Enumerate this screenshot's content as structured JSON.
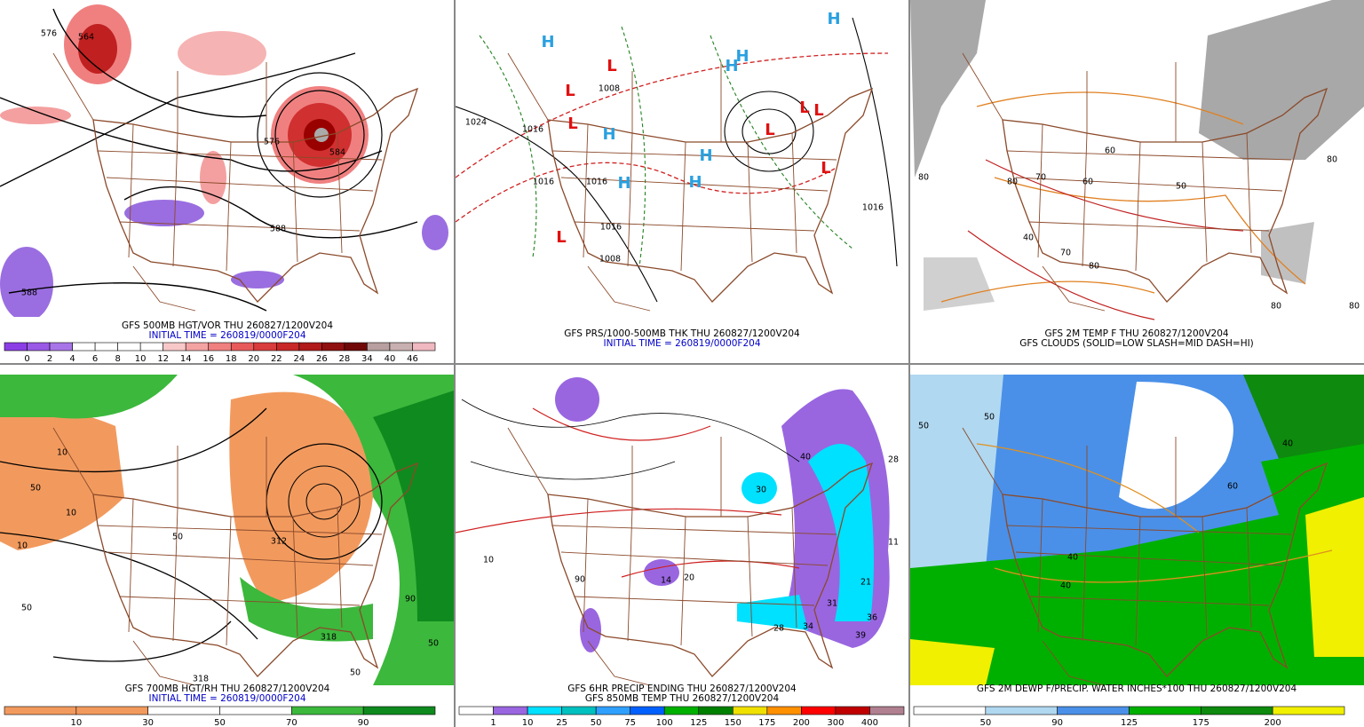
{
  "panels": [
    {
      "captions": [
        {
          "text": "GFS 500MB HGT/VOR THU 260827/1200V204",
          "color": "#000000"
        },
        {
          "text": "INITIAL TIME = 260819/0000F204",
          "color": "#0000c8"
        }
      ],
      "map_labels": [
        "576",
        "564",
        "576",
        "584",
        "588",
        "588"
      ],
      "colorbar": {
        "labels": [
          "0",
          "2",
          "4",
          "6",
          "8",
          "10",
          "12",
          "14",
          "16",
          "18",
          "20",
          "22",
          "24",
          "26",
          "28",
          "34",
          "40",
          "46"
        ],
        "colors": [
          "#8c3ee6",
          "#9959e6",
          "#a875e8",
          "#ffffff",
          "#ffffff",
          "#ffffff",
          "#ffffff",
          "#f8c8c8",
          "#f4a3a3",
          "#f08080",
          "#e85a5a",
          "#d93c3c",
          "#c82828",
          "#b01a1a",
          "#901010",
          "#700808",
          "#b8a0a0",
          "#c8b0b0",
          "#f0b8c0"
        ]
      }
    },
    {
      "captions": [
        {
          "text": "GFS PRS/1000-500MB THK THU 260827/1200V204",
          "color": "#000000"
        },
        {
          "text": "INITIAL TIME = 260819/0000F204",
          "color": "#0000c8"
        }
      ],
      "map_labels": [
        "1024",
        "1016",
        "1016",
        "1016",
        "1016",
        "1008",
        "1016",
        "1008"
      ],
      "high_labels": [
        "H",
        "H",
        "H",
        "H",
        "H",
        "H",
        "H",
        "H"
      ],
      "low_labels": [
        "L",
        "L",
        "L",
        "L",
        "L",
        "L",
        "L",
        "L"
      ]
    },
    {
      "captions": [
        {
          "text": "GFS 2M TEMP F THU 260827/1200V204",
          "color": "#000000"
        },
        {
          "text": "GFS CLOUDS (SOLID=LOW SLASH=MID DASH=HI)",
          "color": "#000000"
        }
      ],
      "map_labels": [
        "80",
        "70",
        "60",
        "50",
        "80",
        "80",
        "40",
        "70",
        "80",
        "60",
        "80",
        "80"
      ]
    },
    {
      "captions": [
        {
          "text": "GFS 700MB HGT/RH THU 260827/1200V204",
          "color": "#000000"
        },
        {
          "text": "INITIAL TIME = 260819/0000F204",
          "color": "#0000c8"
        }
      ],
      "map_labels": [
        "10",
        "50",
        "10",
        "50",
        "10",
        "50",
        "312",
        "318",
        "318",
        "90",
        "50",
        "50"
      ],
      "colorbar": {
        "labels": [
          "10",
          "30",
          "50",
          "70",
          "90"
        ],
        "colors": [
          "#f29a5e",
          "#f29a5e",
          "#ffffff",
          "#ffffff",
          "#3cb83c",
          "#0f8a1e"
        ]
      }
    },
    {
      "captions": [
        {
          "text": "GFS 6HR PRECIP ENDING THU 260827/1200V204",
          "color": "#000000"
        },
        {
          "text": "GFS 850MB TEMP THU 260827/1200V204",
          "color": "#000000"
        }
      ],
      "map_labels": [
        "40",
        "30",
        "28",
        "34",
        "39",
        "36",
        "21",
        "31",
        "11",
        "28",
        "14",
        "90",
        "20",
        "10"
      ],
      "colorbar": {
        "labels": [
          "1",
          "10",
          "25",
          "50",
          "75",
          "100",
          "125",
          "150",
          "175",
          "200",
          "300",
          "400"
        ],
        "colors": [
          "#ffffff",
          "#9966e0",
          "#00e0ff",
          "#00c0c0",
          "#30a0ff",
          "#0060ff",
          "#00b000",
          "#008000",
          "#f0e000",
          "#ff9000",
          "#ff0000",
          "#c00000",
          "#b08090"
        ]
      }
    },
    {
      "captions": [
        {
          "text": "GFS 2M DEWP F/PRECIP. WATER INCHES*100 THU 260827/1200V204",
          "color": "#000000"
        }
      ],
      "map_labels": [
        "50",
        "50",
        "40",
        "40",
        "60",
        "40"
      ],
      "colorbar": {
        "labels": [
          "50",
          "90",
          "125",
          "175",
          "200"
        ],
        "colors": [
          "#ffffff",
          "#b0d8f0",
          "#4a90e8",
          "#00b000",
          "#0e8a0e",
          "#f0f000"
        ]
      }
    }
  ]
}
